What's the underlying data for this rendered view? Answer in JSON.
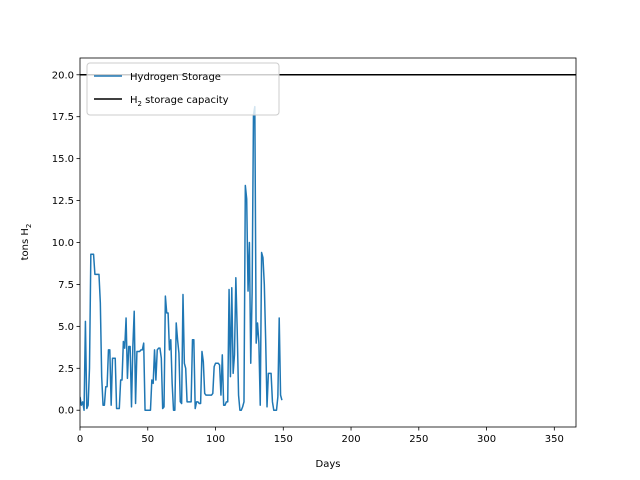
{
  "chart_data": {
    "type": "line",
    "title": "",
    "xlabel": "Days",
    "ylabel_main": "tons H",
    "ylabel_sub": "2",
    "xlim": [
      0,
      366
    ],
    "ylim": [
      -1.0,
      21.0
    ],
    "xticks": [
      0,
      50,
      100,
      150,
      200,
      250,
      300,
      350
    ],
    "yticks": [
      0.0,
      2.5,
      5.0,
      7.5,
      10.0,
      12.5,
      15.0,
      17.5,
      20.0
    ],
    "legend_position": "top-left",
    "capacity": {
      "value": 20.0,
      "name_main": "H",
      "name_sub": "2",
      "name_tail": " storage capacity",
      "color": "#000000"
    },
    "series": [
      {
        "name": "Hydrogen Storage",
        "color": "#1f77b4",
        "points": [
          [
            0,
            0.8
          ],
          [
            1,
            0.3
          ],
          [
            2,
            0.5
          ],
          [
            3,
            0.0
          ],
          [
            4,
            5.3
          ],
          [
            5,
            0.1
          ],
          [
            6,
            0.3
          ],
          [
            7,
            2.5
          ],
          [
            8,
            9.3
          ],
          [
            9,
            9.3
          ],
          [
            10,
            9.3
          ],
          [
            11,
            8.1
          ],
          [
            12,
            8.1
          ],
          [
            13,
            8.1
          ],
          [
            14,
            8.1
          ],
          [
            15,
            6.4
          ],
          [
            16,
            2.0
          ],
          [
            17,
            0.3
          ],
          [
            18,
            0.3
          ],
          [
            19,
            1.4
          ],
          [
            20,
            1.4
          ],
          [
            21,
            3.6
          ],
          [
            22,
            3.6
          ],
          [
            23,
            0.3
          ],
          [
            24,
            3.1
          ],
          [
            25,
            3.1
          ],
          [
            26,
            3.1
          ],
          [
            27,
            0.1
          ],
          [
            28,
            0.1
          ],
          [
            29,
            0.1
          ],
          [
            30,
            1.8
          ],
          [
            31,
            1.8
          ],
          [
            32,
            4.1
          ],
          [
            33,
            3.7
          ],
          [
            34,
            5.5
          ],
          [
            35,
            1.9
          ],
          [
            36,
            3.8
          ],
          [
            37,
            3.8
          ],
          [
            38,
            0.2
          ],
          [
            39,
            3.8
          ],
          [
            40,
            5.9
          ],
          [
            41,
            0.4
          ],
          [
            42,
            3.5
          ],
          [
            43,
            3.5
          ],
          [
            44,
            3.5
          ],
          [
            45,
            3.6
          ],
          [
            46,
            3.6
          ],
          [
            47,
            4.0
          ],
          [
            48,
            0.0
          ],
          [
            49,
            0.0
          ],
          [
            50,
            0.0
          ],
          [
            51,
            0.0
          ],
          [
            52,
            0.0
          ],
          [
            53,
            1.8
          ],
          [
            54,
            1.6
          ],
          [
            55,
            3.6
          ],
          [
            56,
            1.8
          ],
          [
            57,
            3.6
          ],
          [
            58,
            3.7
          ],
          [
            59,
            3.7
          ],
          [
            60,
            3.1
          ],
          [
            61,
            0.1
          ],
          [
            62,
            0.2
          ],
          [
            63,
            6.8
          ],
          [
            64,
            5.8
          ],
          [
            65,
            5.8
          ],
          [
            66,
            3.6
          ],
          [
            67,
            4.2
          ],
          [
            68,
            1.6
          ],
          [
            69,
            0.0
          ],
          [
            70,
            0.0
          ],
          [
            71,
            5.2
          ],
          [
            72,
            4.2
          ],
          [
            73,
            3.4
          ],
          [
            74,
            0.5
          ],
          [
            75,
            0.4
          ],
          [
            76,
            6.9
          ],
          [
            77,
            2.8
          ],
          [
            78,
            2.5
          ],
          [
            79,
            0.5
          ],
          [
            80,
            0.5
          ],
          [
            81,
            0.5
          ],
          [
            82,
            0.5
          ],
          [
            83,
            4.2
          ],
          [
            84,
            4.2
          ],
          [
            85,
            0.1
          ],
          [
            86,
            0.5
          ],
          [
            87,
            0.5
          ],
          [
            88,
            0.4
          ],
          [
            89,
            0.4
          ],
          [
            90,
            3.5
          ],
          [
            91,
            2.9
          ],
          [
            92,
            1.0
          ],
          [
            93,
            0.9
          ],
          [
            94,
            0.9
          ],
          [
            95,
            0.9
          ],
          [
            96,
            0.9
          ],
          [
            97,
            0.9
          ],
          [
            98,
            1.0
          ],
          [
            99,
            2.6
          ],
          [
            100,
            2.8
          ],
          [
            101,
            2.8
          ],
          [
            102,
            2.8
          ],
          [
            103,
            2.7
          ],
          [
            104,
            0.9
          ],
          [
            105,
            3.3
          ],
          [
            106,
            0.3
          ],
          [
            107,
            0.3
          ],
          [
            108,
            0.5
          ],
          [
            109,
            0.5
          ],
          [
            110,
            7.2
          ],
          [
            111,
            2.0
          ],
          [
            112,
            7.3
          ],
          [
            113,
            2.2
          ],
          [
            114,
            3.3
          ],
          [
            115,
            7.9
          ],
          [
            116,
            4.8
          ],
          [
            117,
            0.9
          ],
          [
            118,
            0.0
          ],
          [
            119,
            0.0
          ],
          [
            120,
            0.2
          ],
          [
            121,
            0.5
          ],
          [
            122,
            13.4
          ],
          [
            123,
            12.6
          ],
          [
            124,
            7.1
          ],
          [
            125,
            10.0
          ],
          [
            126,
            2.8
          ],
          [
            127,
            7.0
          ],
          [
            128,
            17.6
          ],
          [
            129,
            18.1
          ],
          [
            130,
            4.0
          ],
          [
            131,
            5.2
          ],
          [
            132,
            4.0
          ],
          [
            133,
            0.3
          ],
          [
            134,
            9.4
          ],
          [
            135,
            9.1
          ],
          [
            136,
            7.5
          ],
          [
            137,
            4.2
          ],
          [
            138,
            0.2
          ],
          [
            139,
            2.2
          ],
          [
            140,
            2.2
          ],
          [
            141,
            2.2
          ],
          [
            142,
            0.5
          ],
          [
            143,
            0.0
          ],
          [
            144,
            0.0
          ],
          [
            145,
            0.0
          ],
          [
            146,
            0.8
          ],
          [
            147,
            5.5
          ],
          [
            148,
            0.9
          ],
          [
            149,
            0.6
          ]
        ]
      }
    ]
  }
}
